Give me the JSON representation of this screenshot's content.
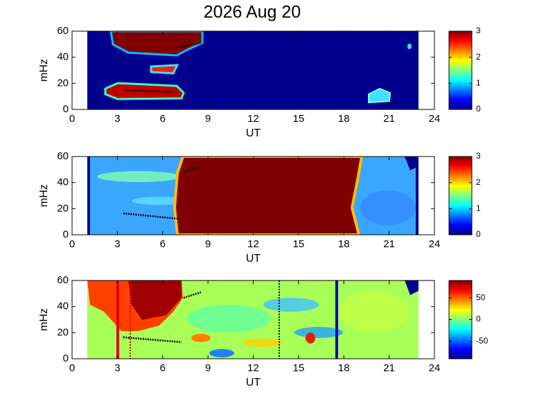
{
  "title": "2026 Aug 20",
  "chart_data": [
    {
      "type": "heatmap",
      "xlabel": "UT",
      "ylabel": "mHz",
      "xlim": [
        0,
        24
      ],
      "xticks": [
        0,
        3,
        6,
        9,
        12,
        15,
        18,
        21,
        24
      ],
      "ylim": [
        0,
        60
      ],
      "yticks": [
        0,
        20,
        40,
        60
      ],
      "clim": [
        0,
        3
      ],
      "cticks": [
        0,
        1,
        2,
        3
      ],
      "colormap": "jet"
    },
    {
      "type": "heatmap",
      "xlabel": "UT",
      "ylabel": "mHz",
      "xlim": [
        0,
        24
      ],
      "xticks": [
        0,
        3,
        6,
        9,
        12,
        15,
        18,
        21,
        24
      ],
      "ylim": [
        0,
        60
      ],
      "yticks": [
        0,
        20,
        40,
        60
      ],
      "clim": [
        0,
        3
      ],
      "cticks": [
        0,
        1,
        2,
        3
      ],
      "colormap": "jet"
    },
    {
      "type": "heatmap",
      "xlabel": "UT",
      "ylabel": "mHz",
      "xlim": [
        0,
        24
      ],
      "xticks": [
        0,
        3,
        6,
        9,
        12,
        15,
        18,
        21,
        24
      ],
      "ylim": [
        0,
        60
      ],
      "yticks": [
        0,
        20,
        40,
        60
      ],
      "clim": [
        -90,
        90
      ],
      "cticks": [
        -50,
        0,
        50
      ],
      "colormap": "jet"
    }
  ]
}
